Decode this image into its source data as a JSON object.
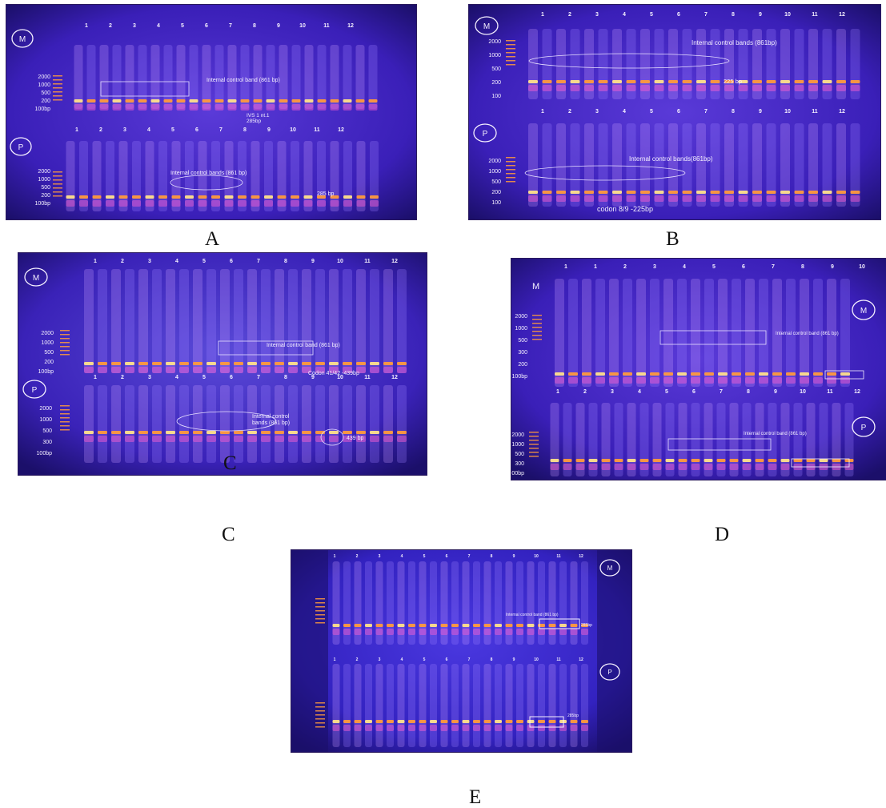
{
  "figure": {
    "captions": {
      "a": "A",
      "b": "B",
      "c_inner": "C",
      "c": "C",
      "d": "D",
      "e": "E"
    }
  },
  "colors": {
    "gel_background": "#3a1fb8",
    "gel_dark": "#1b0f6a",
    "band_hot": "#ffe08a",
    "band_warm": "#ff9a3c",
    "band_pink": "#ff5fd0",
    "label_white": "#f5f0ff"
  },
  "panel_a": {
    "lane_numbers_top": [
      "1",
      "2",
      "3",
      "4",
      "5",
      "6",
      "7",
      "8",
      "9",
      "10",
      "11",
      "12"
    ],
    "lane_numbers_bottom": [
      "1",
      "2",
      "3",
      "4",
      "5",
      "6",
      "7",
      "8",
      "9",
      "10",
      "11",
      "12"
    ],
    "marker": "M",
    "ladder_top": [
      "2000",
      "1000",
      "500",
      "200",
      "100bp"
    ],
    "ladder_bottom": [
      "2000",
      "1000",
      "500",
      "200",
      "100bp"
    ],
    "circle_top": "M",
    "circle_bottom": "P",
    "note_top": "Internal control band (861 bp)",
    "note_mid": "IVS 1 nt.1",
    "note_mid2": "285bp",
    "note_bottom": "Internal control bands (861 bp)",
    "note_bottom_right": "285 bp"
  },
  "panel_b": {
    "lane_numbers_top": [
      "1",
      "2",
      "3",
      "4",
      "5",
      "6",
      "7",
      "8",
      "9",
      "10",
      "11",
      "12"
    ],
    "lane_numbers_bottom": [
      "1",
      "2",
      "3",
      "4",
      "5",
      "6",
      "7",
      "8",
      "9",
      "10",
      "11",
      "12"
    ],
    "marker": "M",
    "ladder_top": [
      "2000",
      "1000",
      "500",
      "200",
      "100"
    ],
    "ladder_bottom": [
      "2000",
      "1000",
      "500",
      "200",
      "100"
    ],
    "circle_top": "M",
    "circle_bottom": "P",
    "note_top": "Internal control bands (861bp)",
    "note_top_right": "225 bp",
    "note_bottom": "Internal control bands(861bp)",
    "note_bottom_caption": "codon 8/9 -225bp"
  },
  "panel_c": {
    "lane_numbers_top": [
      "1",
      "2",
      "3",
      "4",
      "5",
      "6",
      "7",
      "8",
      "9",
      "10",
      "11",
      "12"
    ],
    "lane_numbers_bottom": [
      "1",
      "2",
      "3",
      "4",
      "5",
      "6",
      "7",
      "8",
      "9",
      "10",
      "11",
      "12"
    ],
    "marker": "M",
    "ladder_top": [
      "2000",
      "1000",
      "500",
      "200",
      "100bp"
    ],
    "ladder_bottom": [
      "2000",
      "1000",
      "500",
      "300",
      "100bp"
    ],
    "circle_top": "M",
    "circle_bottom": "P",
    "note_top": "Internal control band (861 bp)",
    "note_top_right": "Codon 41/42 -439bp",
    "note_bottom": "Internal control",
    "note_bottom2": "bands (861 bp)",
    "note_bottom_right": "439 bp"
  },
  "panel_d": {
    "lane_numbers_top": [
      "1",
      "1",
      "2",
      "3",
      "4",
      "5",
      "6",
      "7",
      "8",
      "9",
      "10"
    ],
    "lane_numbers_bottom": [
      "1",
      "2",
      "3",
      "4",
      "5",
      "6",
      "7",
      "8",
      "9",
      "10",
      "11",
      "12"
    ],
    "marker": "M",
    "ladder_top": [
      "2000",
      "1000",
      "500",
      "300",
      "200",
      "100bp"
    ],
    "ladder_bottom": [
      "2000",
      "1000",
      "500",
      "300",
      "100bp"
    ],
    "circle_top": "M",
    "circle_bottom": "P",
    "note_top": "Internal control band (861 bp)",
    "note_bottom": "Internal control band (861 bp)"
  },
  "panel_e": {
    "lane_numbers_top": [
      "1",
      "2",
      "3",
      "4",
      "5",
      "6",
      "7",
      "8",
      "9",
      "10",
      "11",
      "12"
    ],
    "lane_numbers_bottom": [
      "1",
      "2",
      "3",
      "4",
      "5",
      "6",
      "7",
      "8",
      "9",
      "10",
      "11",
      "12"
    ],
    "circle_top": "M",
    "circle_bottom": "P",
    "note_top": "Internal control band (861 bp)",
    "note_top_right": "285bp",
    "note_bottom_right": "285bp"
  }
}
